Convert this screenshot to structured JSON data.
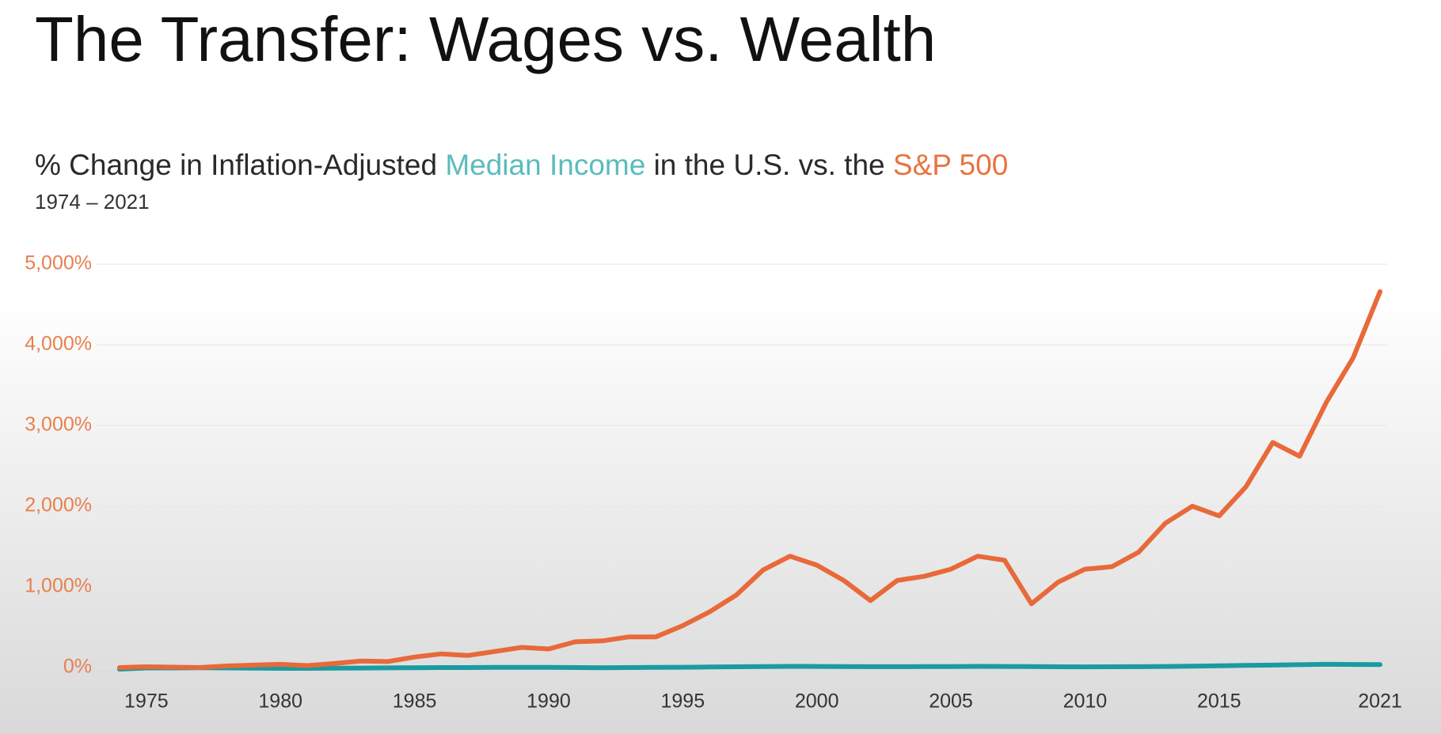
{
  "chart_data": {
    "type": "line",
    "title": "The Transfer: Wages vs. Wealth",
    "subtitle_parts": [
      "% Change in Inflation-Adjusted ",
      " in the U.S. vs. the "
    ],
    "date_range": "1974 – 2021",
    "x": [
      1974,
      1975,
      1976,
      1977,
      1978,
      1979,
      1980,
      1981,
      1982,
      1983,
      1984,
      1985,
      1986,
      1987,
      1988,
      1989,
      1990,
      1991,
      1992,
      1993,
      1994,
      1995,
      1996,
      1997,
      1998,
      1999,
      2000,
      2001,
      2002,
      2003,
      2004,
      2005,
      2006,
      2007,
      2008,
      2009,
      2010,
      2011,
      2012,
      2013,
      2014,
      2015,
      2016,
      2017,
      2018,
      2019,
      2020,
      2021
    ],
    "series": [
      {
        "name": "Median Income",
        "color": "#1a9ba0",
        "values": [
          -20,
          -5,
          -5,
          -3,
          -5,
          -8,
          -10,
          -10,
          -8,
          -6,
          -4,
          -2,
          0,
          0,
          2,
          3,
          2,
          0,
          -2,
          0,
          2,
          4,
          7,
          10,
          13,
          15,
          14,
          12,
          11,
          11,
          12,
          13,
          15,
          14,
          12,
          10,
          9,
          10,
          11,
          14,
          17,
          22,
          27,
          30,
          35,
          40,
          38,
          36
        ]
      },
      {
        "name": "S&P 500",
        "color": "#e8693a",
        "values": [
          0,
          10,
          5,
          0,
          20,
          30,
          40,
          25,
          50,
          80,
          75,
          130,
          170,
          150,
          200,
          250,
          230,
          320,
          330,
          380,
          380,
          520,
          690,
          900,
          1210,
          1380,
          1270,
          1080,
          830,
          1080,
          1130,
          1220,
          1380,
          1330,
          790,
          1060,
          1220,
          1250,
          1430,
          1790,
          2000,
          1880,
          2240,
          2790,
          2620,
          3290,
          3840,
          4660
        ]
      }
    ],
    "xlim": [
      1974,
      2021
    ],
    "xticks": [
      1975,
      1980,
      1985,
      1990,
      1995,
      2000,
      2005,
      2010,
      2015,
      2021
    ],
    "ylim": [
      0,
      5000
    ],
    "yticks": [
      {
        "value": 0,
        "label": "0%"
      },
      {
        "value": 1000,
        "label": "1,000%"
      },
      {
        "value": 2000,
        "label": "2,000%"
      },
      {
        "value": 3000,
        "label": "3,000%"
      },
      {
        "value": 4000,
        "label": "4,000%"
      },
      {
        "value": 5000,
        "label": "5,000%"
      }
    ],
    "grid": true,
    "ytick_color": "#e8804f"
  }
}
